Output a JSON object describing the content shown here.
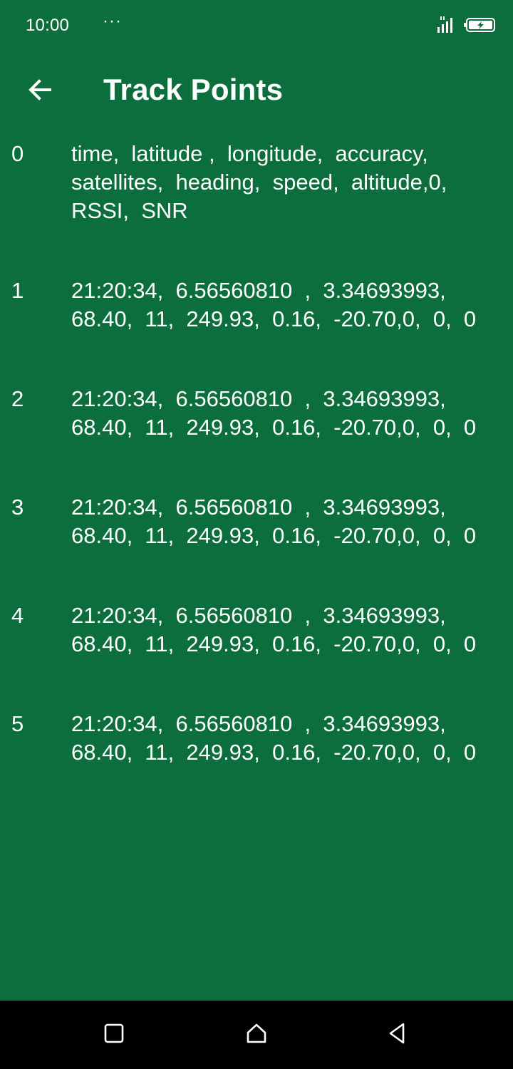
{
  "status_bar": {
    "time": "10:00",
    "dots": "···",
    "signal_icon": "signal-strength-icon",
    "battery_icon": "battery-charging-icon"
  },
  "app_bar": {
    "title": "Track Points",
    "back_icon": "arrow-left-icon"
  },
  "track_points": [
    {
      "index": "0",
      "text": "time,  latitude ,  longitude,  accuracy,\nsatellites,  heading,  speed,  altitude,0,\nRSSI,  SNR"
    },
    {
      "index": "1",
      "text": "21:20:34,  6.56560810  ,  3.34693993,\n68.40,  11,  249.93,  0.16,  -20.70,0,  0,  0"
    },
    {
      "index": "2",
      "text": "21:20:34,  6.56560810  ,  3.34693993,\n68.40,  11,  249.93,  0.16,  -20.70,0,  0,  0"
    },
    {
      "index": "3",
      "text": "21:20:34,  6.56560810  ,  3.34693993,\n68.40,  11,  249.93,  0.16,  -20.70,0,  0,  0"
    },
    {
      "index": "4",
      "text": "21:20:34,  6.56560810  ,  3.34693993,\n68.40,  11,  249.93,  0.16,  -20.70,0,  0,  0"
    },
    {
      "index": "5",
      "text": "21:20:34,  6.56560810  ,  3.34693993,\n68.40,  11,  249.93,  0.16,  -20.70,0,  0,  0"
    }
  ],
  "nav_bar": {
    "recents_icon": "square-recents-icon",
    "home_icon": "home-icon",
    "back_icon": "triangle-back-icon"
  },
  "colors": {
    "background": "#0b6e3c",
    "text": "#ffffff",
    "nav_bar": "#000000"
  }
}
